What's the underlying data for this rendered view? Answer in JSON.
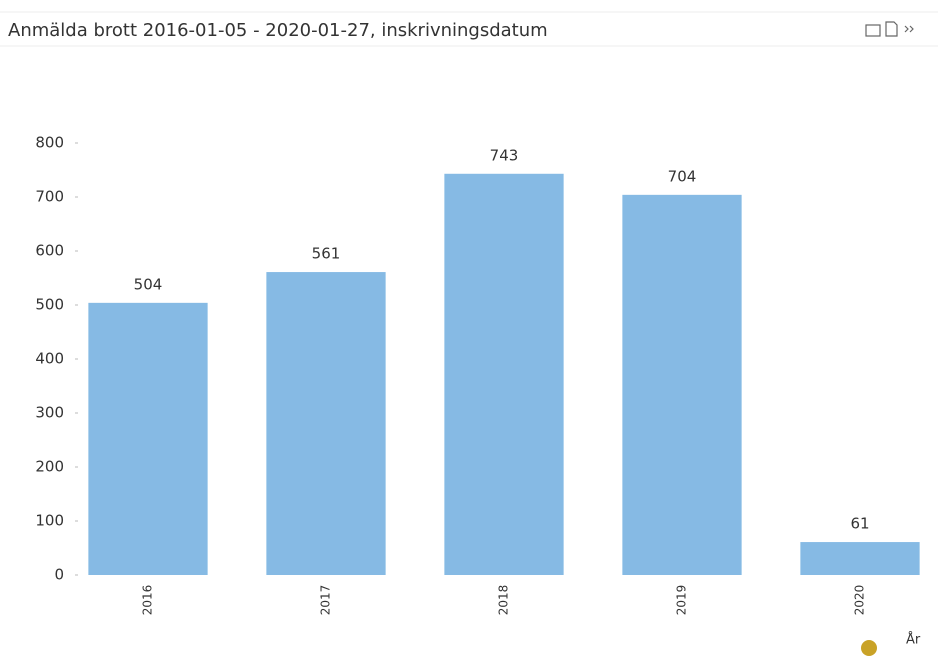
{
  "chart_data": {
    "type": "bar",
    "title": "Anmälda brott 2016-01-05 - 2020-01-27, inskrivningsdatum",
    "categories": [
      "2016",
      "2017",
      "2018",
      "2019",
      "2020"
    ],
    "values": [
      504,
      561,
      743,
      704,
      61
    ],
    "color": "#86bae4",
    "xlabel": "År",
    "ylim": [
      0,
      800
    ],
    "yticks": [
      0,
      100,
      200,
      300,
      400,
      500,
      600,
      700,
      800
    ],
    "grid": false
  }
}
